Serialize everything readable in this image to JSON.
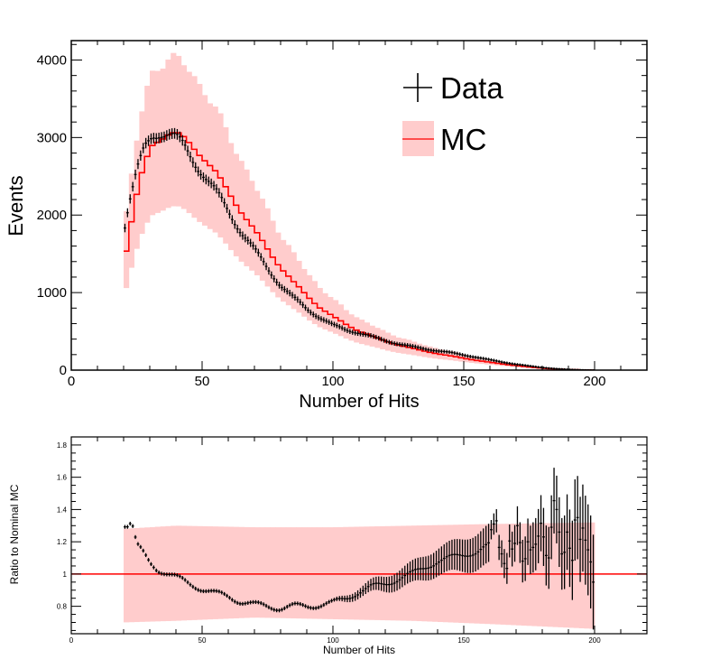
{
  "colors": {
    "mc_line": "#ff0000",
    "mc_band": "#ffcccc",
    "data": "#000000",
    "axis": "#000000"
  },
  "chart_data": [
    {
      "type": "histogram",
      "xlabel": "Number of Hits",
      "ylabel": "Events",
      "xlim": [
        0,
        220
      ],
      "ylim": [
        0,
        4250
      ],
      "xticks": [
        0,
        50,
        100,
        150,
        200
      ],
      "yticks": [
        0,
        1000,
        2000,
        3000,
        4000
      ],
      "legend": {
        "placement": "top-right",
        "entries": [
          {
            "label": "Data",
            "style": "marker"
          },
          {
            "label": "MC",
            "style": "line-band"
          }
        ]
      },
      "mc": {
        "name": "MC",
        "anchors_x": [
          20,
          22,
          25,
          28,
          31,
          34,
          37,
          40,
          43,
          46,
          50,
          55,
          60,
          65,
          70,
          75,
          80,
          85,
          90,
          95,
          100,
          105,
          110,
          115,
          120,
          125,
          130,
          135,
          140,
          145,
          150,
          155,
          160,
          165,
          170,
          175,
          180,
          185,
          190,
          195,
          200
        ],
        "anchors_y": [
          1350,
          1750,
          2250,
          2650,
          2900,
          3000,
          3050,
          3050,
          2980,
          2900,
          2770,
          2550,
          2300,
          2050,
          1800,
          1560,
          1330,
          1130,
          960,
          810,
          690,
          590,
          505,
          435,
          375,
          325,
          282,
          245,
          212,
          182,
          153,
          126,
          100,
          78,
          58,
          40,
          25,
          14,
          7,
          3,
          1
        ],
        "band_upper_frac": 0.32,
        "band_lower_frac": 0.31
      },
      "data": {
        "name": "Data",
        "anchors_x": [
          20,
          22,
          25,
          28,
          31,
          34,
          37,
          40,
          43,
          46,
          50,
          55,
          60,
          65,
          70,
          75,
          80,
          85,
          90,
          95,
          100,
          105,
          110,
          115,
          120,
          125,
          130,
          135,
          140,
          145,
          150,
          155,
          160,
          165,
          170,
          175,
          180,
          185,
          190,
          195,
          200
        ],
        "anchors_y": [
          1780,
          2150,
          2550,
          2850,
          3020,
          3080,
          3060,
          2990,
          2880,
          2740,
          2560,
          2310,
          2050,
          1790,
          1550,
          1310,
          1100,
          930,
          790,
          680,
          580,
          520,
          480,
          430,
          380,
          340,
          305,
          275,
          250,
          225,
          195,
          165,
          132,
          102,
          76,
          53,
          33,
          19,
          9,
          4,
          1
        ]
      }
    },
    {
      "type": "ratio",
      "xlabel": "Number of Hits",
      "ylabel": "Ratio to Nominal MC",
      "xlim": [
        0,
        220
      ],
      "ylim": [
        0.63,
        1.85
      ],
      "xticks": [
        0,
        50,
        100,
        150,
        200
      ],
      "yticks": [
        0.8,
        1,
        1.2,
        1.4,
        1.6,
        1.8
      ],
      "reference_line": 1,
      "band": {
        "anchors_x": [
          20,
          40,
          70,
          100,
          130,
          160,
          200
        ],
        "upper": [
          1.28,
          1.3,
          1.29,
          1.29,
          1.3,
          1.31,
          1.32
        ],
        "lower": [
          0.7,
          0.71,
          0.73,
          0.72,
          0.71,
          0.69,
          0.66
        ]
      },
      "ratio": {
        "anchors_x": [
          20,
          22,
          23,
          25,
          27,
          30,
          33,
          36,
          40,
          45,
          50,
          55,
          60,
          65,
          70,
          75,
          80,
          85,
          90,
          95,
          100,
          105,
          110,
          115,
          120,
          125,
          130,
          135,
          140,
          145,
          150,
          155,
          160
        ],
        "anchors_y": [
          1.31,
          1.3,
          1.33,
          1.18,
          1.14,
          1.07,
          1.03,
          1.01,
          0.98,
          0.94,
          0.91,
          0.88,
          0.86,
          0.83,
          0.81,
          0.8,
          0.79,
          0.8,
          0.8,
          0.81,
          0.82,
          0.85,
          0.89,
          0.92,
          0.94,
          0.97,
          1.0,
          1.04,
          1.08,
          1.1,
          1.12,
          1.14,
          1.18
        ],
        "tail_x": [
          160,
          161,
          162,
          163,
          164,
          165,
          166,
          167,
          168,
          169,
          170,
          171,
          172,
          173,
          174,
          175,
          176,
          177,
          178,
          179,
          180,
          181,
          182,
          183,
          184,
          185,
          186,
          187,
          188,
          189,
          190,
          191,
          192,
          193,
          194,
          195,
          196,
          197,
          198,
          199
        ],
        "tail_y": [
          1.33,
          1.22,
          1.4,
          1.26,
          1.07,
          1.18,
          0.95,
          1.12,
          1.29,
          1.02,
          1.36,
          1.24,
          1.15,
          1.01,
          1.18,
          1.22,
          1.08,
          1.25,
          1.12,
          1.35,
          1.28,
          1.18,
          1.05,
          1.15,
          1.43,
          1.48,
          1.32,
          1.2,
          1.05,
          1.22,
          1.3,
          1.02,
          1.15,
          1.52,
          1.18,
          1.25,
          1.32,
          1.1,
          1.2,
          0.95
        ]
      }
    }
  ]
}
